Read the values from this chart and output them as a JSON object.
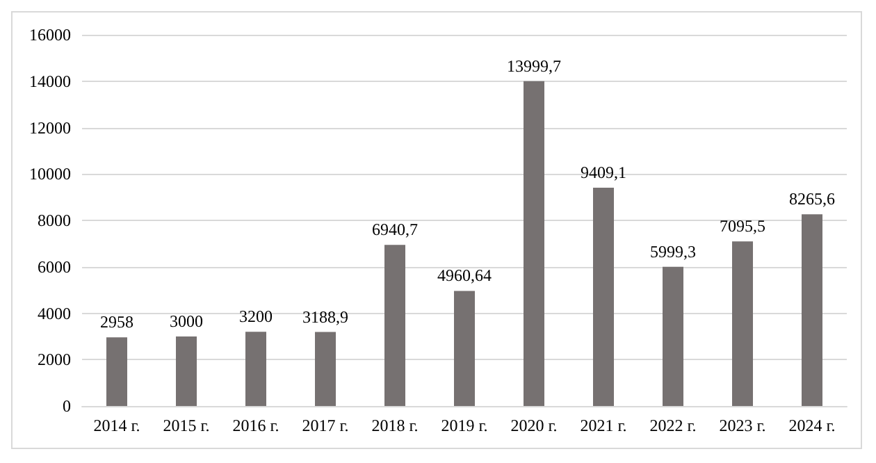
{
  "chart_data": {
    "type": "bar",
    "categories": [
      "2014 г.",
      "2015 г.",
      "2016 г.",
      "2017 г.",
      "2018 г.",
      "2019 г.",
      "2020 г.",
      "2021 г.",
      "2022 г.",
      "2023 г.",
      "2024 г."
    ],
    "values": [
      2958,
      3000,
      3200,
      3188.9,
      6940.7,
      4960.64,
      13999.7,
      9409.1,
      5999.3,
      7095.5,
      8265.6
    ],
    "value_labels": [
      "2958",
      "3000",
      "3200",
      "3188,9",
      "6940,7",
      "4960,64",
      "13999,7",
      "9409,1",
      "5999,3",
      "7095,5",
      "8265,6"
    ],
    "color": "#767171",
    "ylim": [
      0,
      16000
    ],
    "yticks": [
      0,
      2000,
      4000,
      6000,
      8000,
      10000,
      12000,
      14000,
      16000
    ],
    "grid": "y"
  }
}
